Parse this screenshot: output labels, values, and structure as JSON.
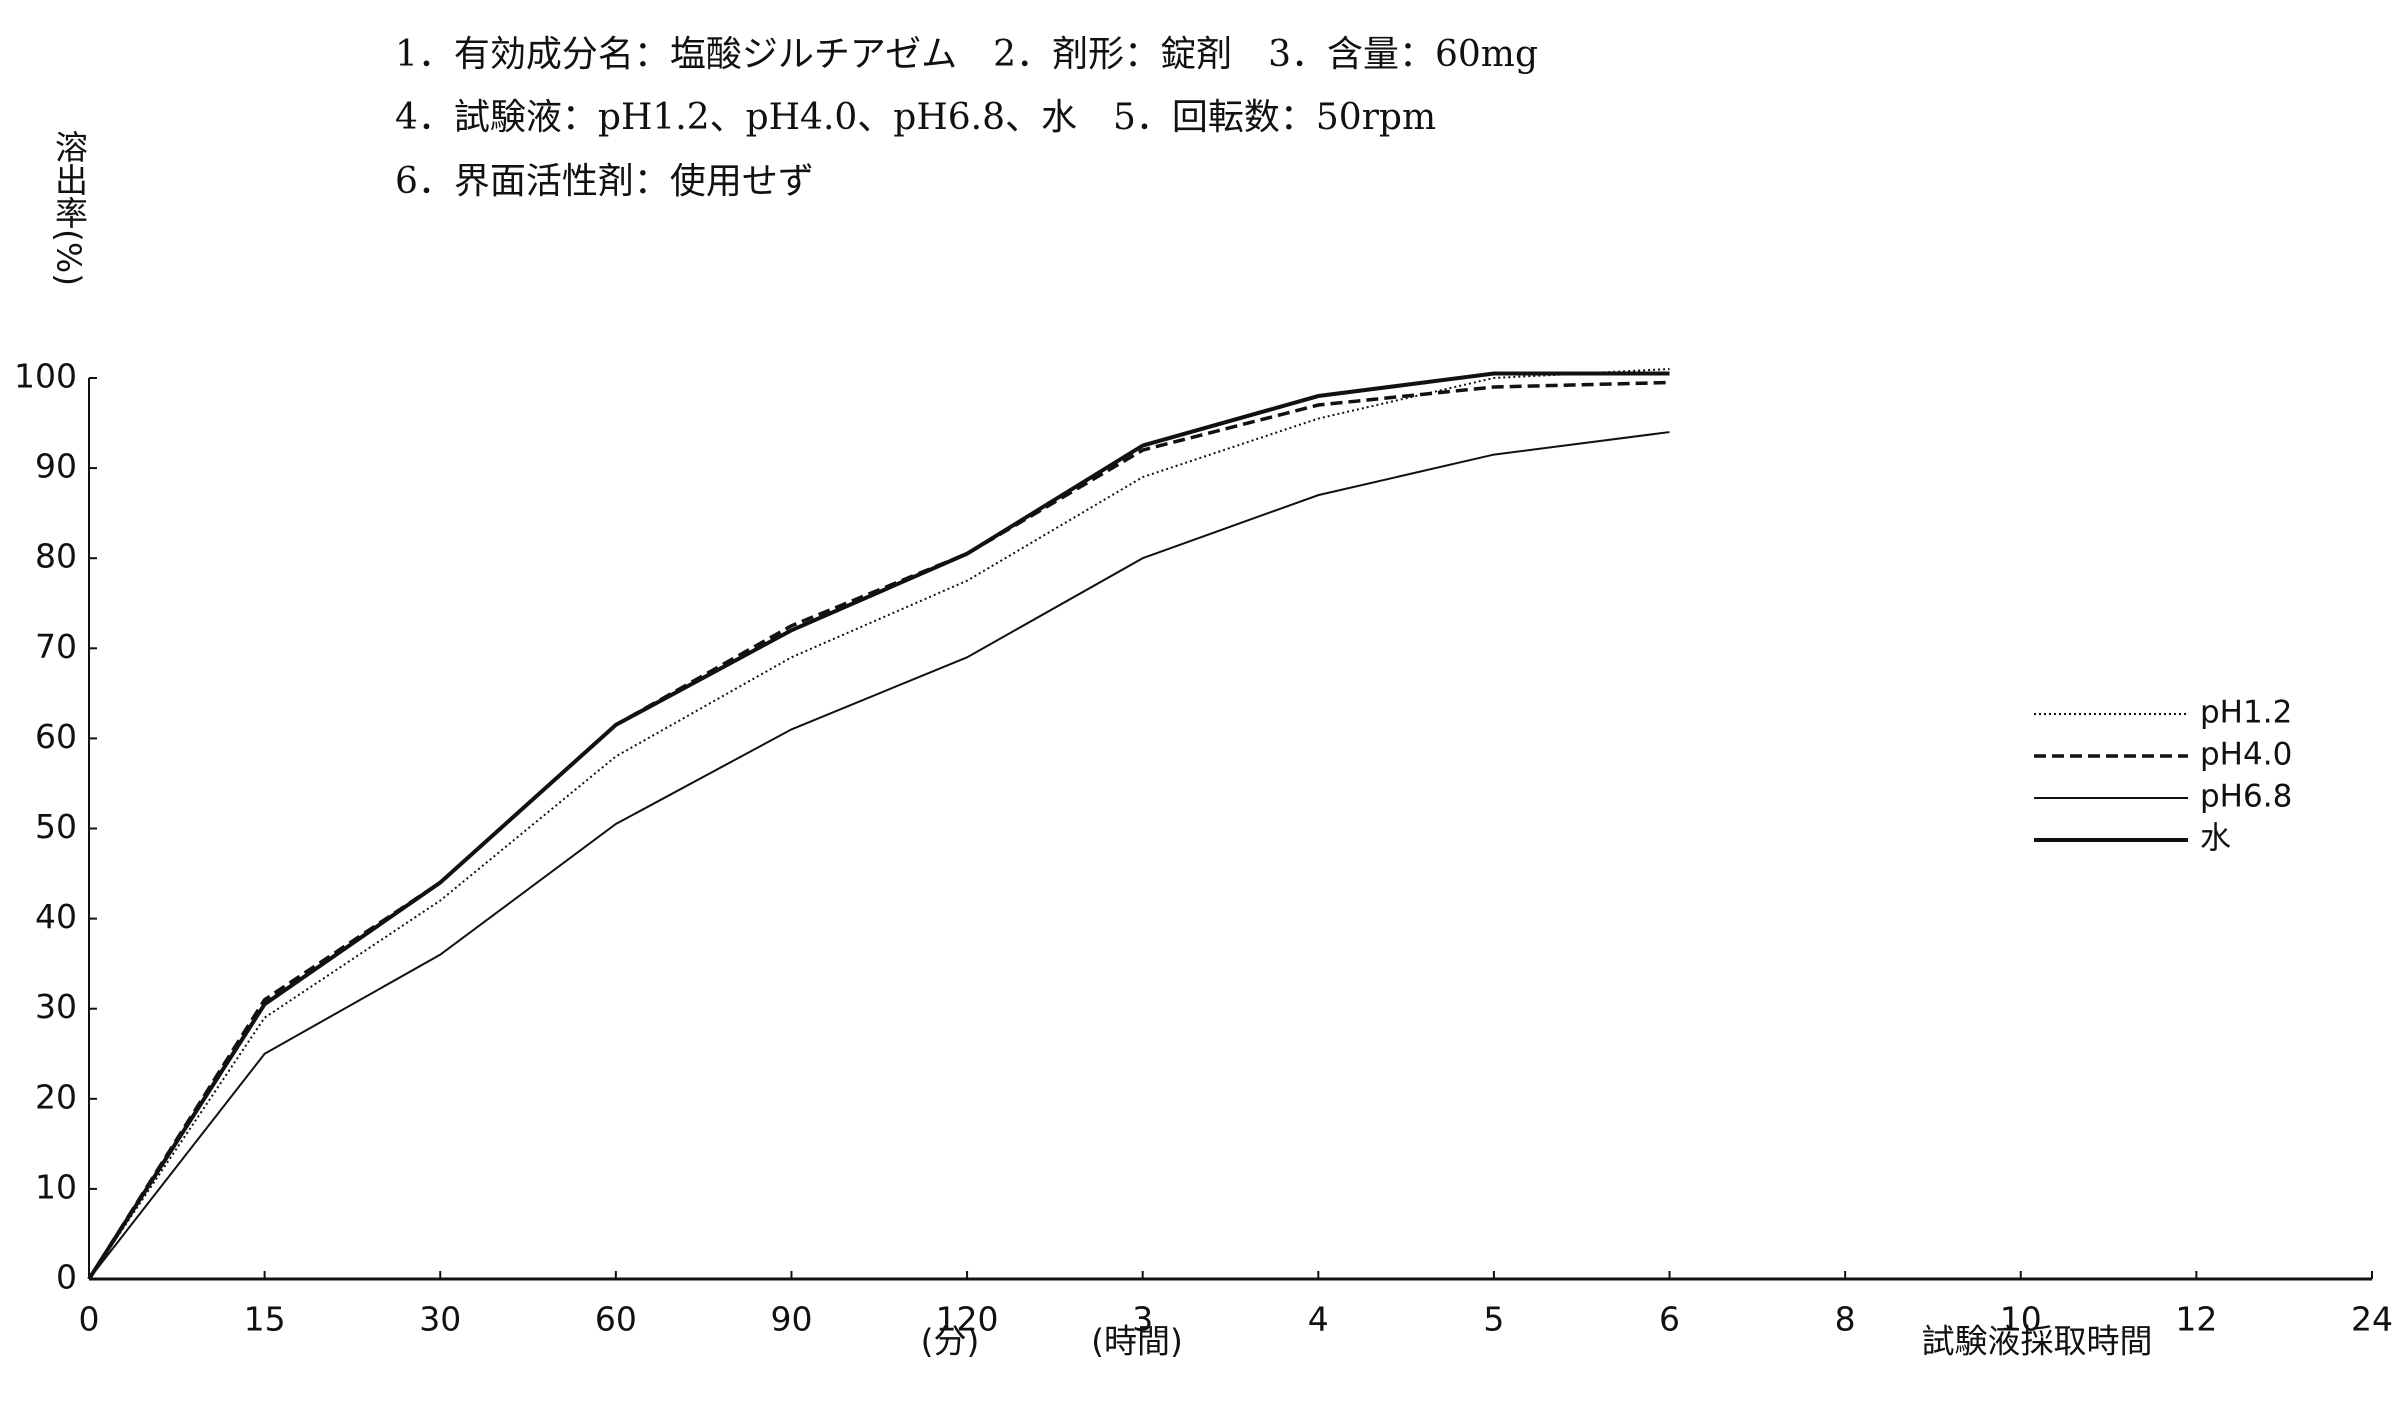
{
  "chart_data": {
    "type": "line",
    "subtitle": [
      "1．有効成分名：塩酸ジルチアゼム　2．剤形：錠剤　3．含量：60mg",
      "4．試験液：pH1.2、pH4.0、pH6.8、水　5．回転数：50rpm",
      "6．界面活性剤：使用せず"
    ],
    "y_label": "溶出率(%)",
    "x_unit_labels": [
      "(分)",
      "(時間)"
    ],
    "x_label": "試験液採取時間",
    "categories": [
      "0",
      "15",
      "30",
      "60",
      "90",
      "120",
      "3",
      "4",
      "5",
      "6",
      "8",
      "10",
      "12",
      "24"
    ],
    "ylim": [
      0,
      100
    ],
    "yticks": [
      0,
      10,
      20,
      30,
      40,
      50,
      60,
      70,
      80,
      90,
      100
    ],
    "legend": "right",
    "series": [
      {
        "name": "pH1.2",
        "color": "#111111",
        "line_style": "dotted",
        "values": [
          0,
          29,
          42,
          58,
          69,
          77.5,
          89,
          95.5,
          100,
          101,
          null,
          null,
          null,
          null
        ]
      },
      {
        "name": "pH4.0",
        "color": "#111111",
        "line_style": "dashed",
        "values": [
          0,
          31,
          44,
          61.5,
          72.5,
          80.5,
          92,
          97,
          99,
          99.5,
          null,
          null,
          null,
          null
        ]
      },
      {
        "name": "pH6.8",
        "color": "#111111",
        "line_style": "thin",
        "values": [
          0,
          25,
          36,
          50.5,
          61,
          69,
          80,
          87,
          91.5,
          94,
          null,
          null,
          null,
          null
        ]
      },
      {
        "name": "水",
        "color": "#111111",
        "line_style": "solid",
        "values": [
          0,
          30.5,
          44,
          61.5,
          72,
          80.5,
          92.5,
          98,
          100.5,
          100.5,
          null,
          null,
          null,
          null
        ]
      }
    ]
  }
}
